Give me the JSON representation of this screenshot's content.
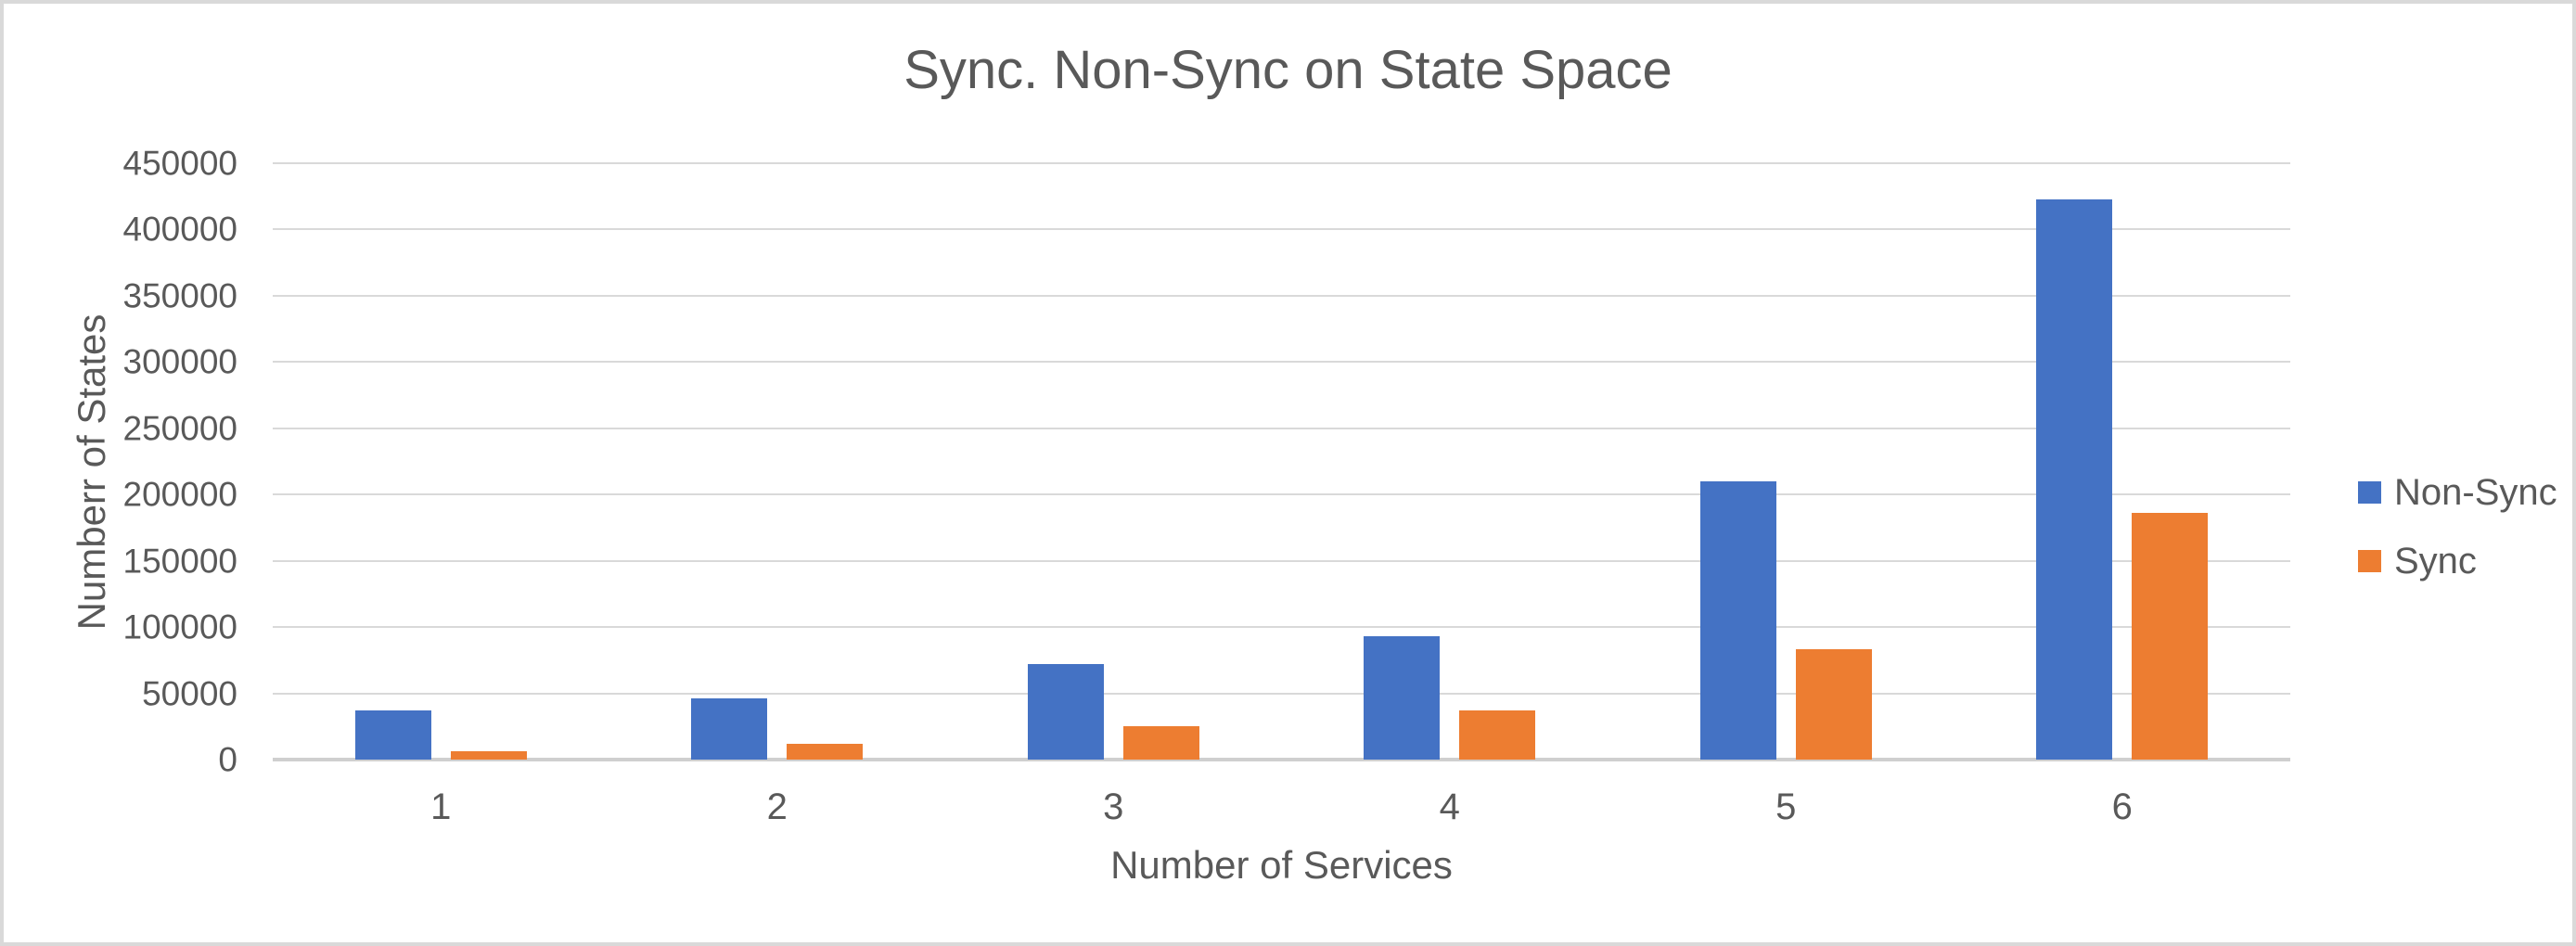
{
  "chart_data": {
    "type": "bar",
    "title": "Sync. Non-Sync on State Space",
    "xlabel": "Number of Services",
    "ylabel": "Numberr of States",
    "categories": [
      "1",
      "2",
      "3",
      "4",
      "5",
      "6"
    ],
    "series": [
      {
        "name": "Non-Sync",
        "color": "#4472C4",
        "values": [
          37000,
          46000,
          72000,
          93000,
          210000,
          423000
        ]
      },
      {
        "name": "Sync",
        "color": "#ED7D31",
        "values": [
          6000,
          12000,
          25000,
          37000,
          83000,
          186000
        ]
      }
    ],
    "ylim": [
      0,
      450000
    ],
    "yticks": [
      {
        "value": 0,
        "label": "0"
      },
      {
        "value": 50000,
        "label": "50000"
      },
      {
        "value": 100000,
        "label": "100000"
      },
      {
        "value": 150000,
        "label": "150000"
      },
      {
        "value": 200000,
        "label": "200000"
      },
      {
        "value": 250000,
        "label": "250000"
      },
      {
        "value": 300000,
        "label": "300000"
      },
      {
        "value": 350000,
        "label": "350000"
      },
      {
        "value": 400000,
        "label": "400000"
      },
      {
        "value": 450000,
        "label": "450000"
      }
    ],
    "grid": true,
    "legend_position": "right"
  },
  "styles": {
    "text_color": "#595959",
    "gridline_color": "#D9D9D9",
    "axis_line_color": "#CFCFCF",
    "frame_border_color": "#D9D9D9",
    "background": "#FFFFFF"
  }
}
